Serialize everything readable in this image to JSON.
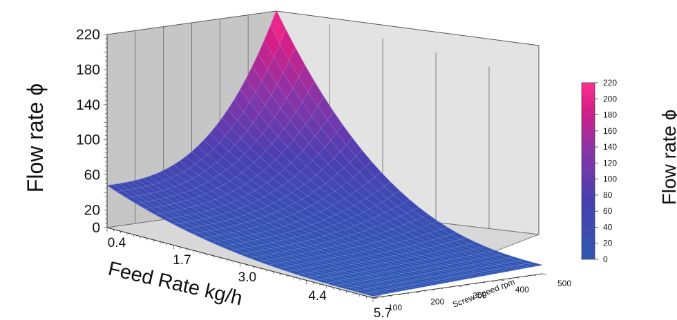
{
  "chart_data": {
    "type": "surface3d",
    "z_label": "Flow rate ϕ",
    "x_label": "Feed Rate kg/h",
    "y_label": "Screw Speed rpm",
    "z_ticks": [
      "220",
      "180",
      "140",
      "100",
      "60",
      "20",
      "0"
    ],
    "x_ticks": [
      "0.4",
      "1.7",
      "3.0",
      "4.4",
      "5.7"
    ],
    "y_ticks": [
      "100",
      "200",
      "300",
      "400",
      "500"
    ],
    "zlim": [
      0,
      220
    ],
    "xlim": [
      0.4,
      5.7
    ],
    "ylim": [
      100,
      500
    ],
    "surface_corners": [
      {
        "feed_rate": 0.4,
        "screw_speed": 500,
        "flow_rate": 220
      },
      {
        "feed_rate": 0.4,
        "screw_speed": 100,
        "flow_rate": 48
      },
      {
        "feed_rate": 5.7,
        "screw_speed": 500,
        "flow_rate": 10
      },
      {
        "feed_rate": 5.7,
        "screw_speed": 100,
        "flow_rate": 2
      }
    ],
    "colorbar": {
      "ticks": [
        "220",
        "200",
        "180",
        "160",
        "140",
        "120",
        "100",
        "80",
        "60",
        "40",
        "20",
        "0"
      ],
      "colors": [
        "#2e58b3",
        "#4b3fb0",
        "#8535a8",
        "#d41f86",
        "#ff2f8f"
      ]
    },
    "second_panel_label": "Flow rate ϕ"
  }
}
